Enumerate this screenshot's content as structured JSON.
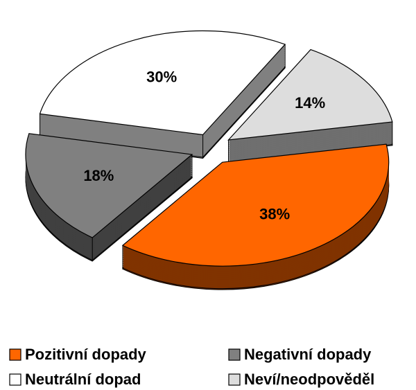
{
  "chart_data": {
    "type": "pie3d",
    "categories": [
      "Pozitivní dopady",
      "Negativní dopady",
      "Neutrální dopad",
      "Neví/neodpověděl"
    ],
    "values": [
      38,
      18,
      30,
      14
    ],
    "value_labels": [
      "38%",
      "18%",
      "30%",
      "14%"
    ],
    "colors": [
      "#ff6600",
      "#808080",
      "#ffffff",
      "#dddddd"
    ]
  }
}
